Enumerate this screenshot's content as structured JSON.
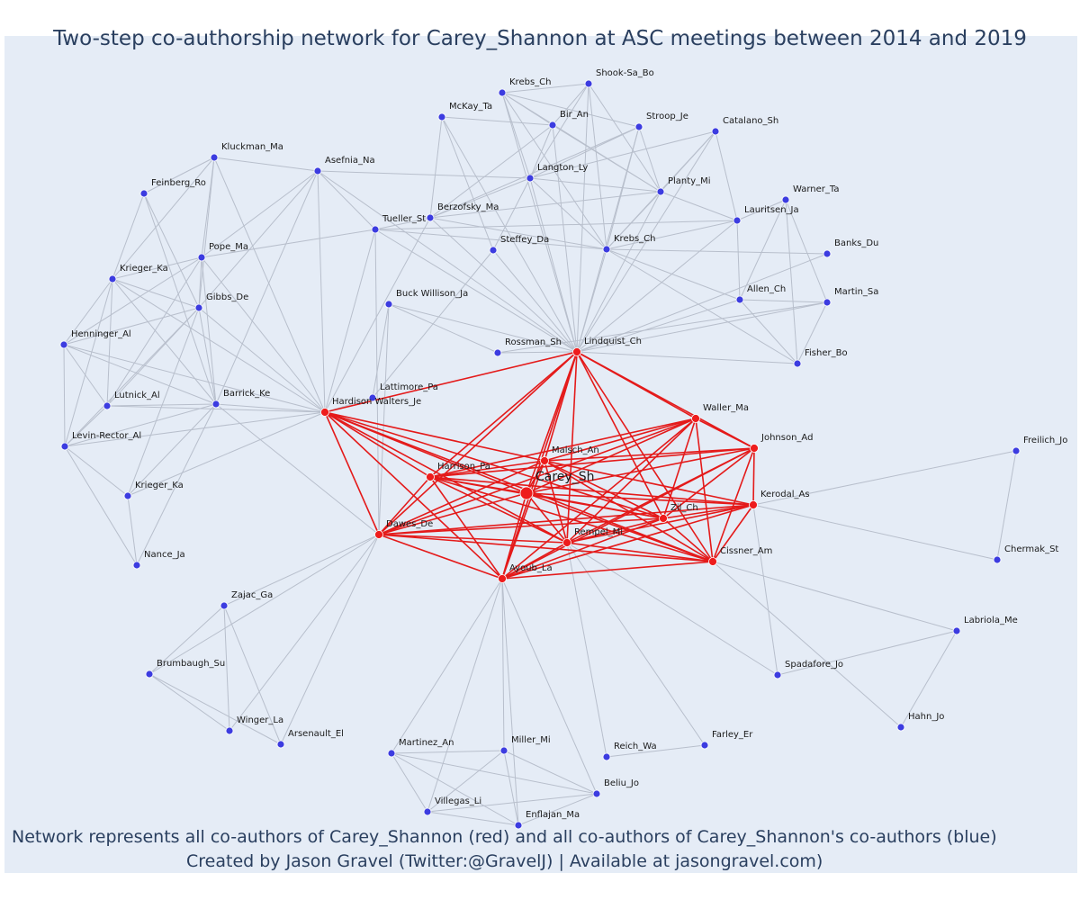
{
  "title": "Two-step co-authorship network for Carey_Shannon at ASC meetings between 2014 and 2019",
  "footnote": {
    "line1": "Network represents all co-authors of Carey_Shannon (red) and all co-authors of Carey_Shannon's co-authors (blue)",
    "line2": "Created by Jason Gravel (Twitter:@GravelJ) | Available at jasongravel.com)"
  },
  "colors": {
    "direct": "#ee1c1c",
    "second": "#3c3ce0",
    "edge_direct": "#e41a1a",
    "edge_second": "#b8bfcc",
    "background": "#e5ecf6"
  },
  "focal": "Carey_Sh",
  "nodes": [
    {
      "id": "Carey_Sh",
      "group": "focal"
    },
    {
      "id": "Malsch_An",
      "group": "direct"
    },
    {
      "id": "Harrison_Pa",
      "group": "direct"
    },
    {
      "id": "Dawes_De",
      "group": "direct"
    },
    {
      "id": "Rempel_Mi",
      "group": "direct"
    },
    {
      "id": "Ayoub_La",
      "group": "direct"
    },
    {
      "id": "Zil_Ch",
      "group": "direct"
    },
    {
      "id": "Cissner_Am",
      "group": "direct"
    },
    {
      "id": "Kerodal_As",
      "group": "direct"
    },
    {
      "id": "Johnson_Ad",
      "group": "direct"
    },
    {
      "id": "Waller_Ma",
      "group": "direct"
    },
    {
      "id": "Lindquist_Ch",
      "group": "direct"
    },
    {
      "id": "Hardison Walters_Je",
      "group": "direct"
    },
    {
      "id": "Krebs_Ch",
      "group": "second"
    },
    {
      "id": "Shook-Sa_Bo",
      "group": "second"
    },
    {
      "id": "McKay_Ta",
      "group": "second"
    },
    {
      "id": "Bir_An",
      "group": "second"
    },
    {
      "id": "Stroop_Je",
      "group": "second"
    },
    {
      "id": "Catalano_Sh",
      "group": "second"
    },
    {
      "id": "Kluckman_Ma",
      "group": "second"
    },
    {
      "id": "Asefnia_Na",
      "group": "second"
    },
    {
      "id": "Langton_Ly",
      "group": "second"
    },
    {
      "id": "Planty_Mi",
      "group": "second"
    },
    {
      "id": "Warner_Ta",
      "group": "second"
    },
    {
      "id": "Feinberg_Ro",
      "group": "second"
    },
    {
      "id": "Berzofsky_Ma",
      "group": "second"
    },
    {
      "id": "Tueller_St",
      "group": "second"
    },
    {
      "id": "Lauritsen_Ja",
      "group": "second"
    },
    {
      "id": "Krebs_Ch_2",
      "label": "Krebs_Ch",
      "group": "second"
    },
    {
      "id": "Steffey_Da",
      "group": "second"
    },
    {
      "id": "Banks_Du",
      "group": "second"
    },
    {
      "id": "Pope_Ma",
      "group": "second"
    },
    {
      "id": "Krieger_Ka",
      "group": "second"
    },
    {
      "id": "Allen_Ch",
      "group": "second"
    },
    {
      "id": "Martin_Sa",
      "group": "second"
    },
    {
      "id": "Gibbs_De",
      "group": "second"
    },
    {
      "id": "Buck Willison_Ja",
      "group": "second"
    },
    {
      "id": "Henninger_Al",
      "group": "second"
    },
    {
      "id": "Rossman_Sh",
      "group": "second"
    },
    {
      "id": "Fisher_Bo",
      "group": "second"
    },
    {
      "id": "Lattimore_Pa",
      "group": "second"
    },
    {
      "id": "Lutnick_Al",
      "group": "second"
    },
    {
      "id": "Barrick_Ke",
      "group": "second"
    },
    {
      "id": "Levin-Rector_Al",
      "group": "second"
    },
    {
      "id": "Freilich_Jo",
      "group": "second"
    },
    {
      "id": "Krieger_Ka_2",
      "label": "Krieger_Ka",
      "group": "second"
    },
    {
      "id": "Chermak_St",
      "group": "second"
    },
    {
      "id": "Nance_Ja",
      "group": "second"
    },
    {
      "id": "Zajac_Ga",
      "group": "second"
    },
    {
      "id": "Labriola_Me",
      "group": "second"
    },
    {
      "id": "Spadafore_Jo",
      "group": "second"
    },
    {
      "id": "Brumbaugh_Su",
      "group": "second"
    },
    {
      "id": "Hahn_Jo",
      "group": "second"
    },
    {
      "id": "Winger_La",
      "group": "second"
    },
    {
      "id": "Arsenault_El",
      "group": "second"
    },
    {
      "id": "Farley_Er",
      "group": "second"
    },
    {
      "id": "Martinez_An",
      "group": "second"
    },
    {
      "id": "Miller_Mi",
      "group": "second"
    },
    {
      "id": "Reich_Wa",
      "group": "second"
    },
    {
      "id": "Beliu_Jo",
      "group": "second"
    },
    {
      "id": "Villegas_Li",
      "group": "second"
    },
    {
      "id": "Enflajan_Ma",
      "group": "second"
    }
  ],
  "edges_direct": [
    [
      "Carey_Sh",
      "Malsch_An"
    ],
    [
      "Carey_Sh",
      "Harrison_Pa"
    ],
    [
      "Carey_Sh",
      "Dawes_De"
    ],
    [
      "Carey_Sh",
      "Rempel_Mi"
    ],
    [
      "Carey_Sh",
      "Ayoub_La"
    ],
    [
      "Carey_Sh",
      "Zil_Ch"
    ],
    [
      "Carey_Sh",
      "Cissner_Am"
    ],
    [
      "Carey_Sh",
      "Kerodal_As"
    ],
    [
      "Carey_Sh",
      "Johnson_Ad"
    ],
    [
      "Carey_Sh",
      "Waller_Ma"
    ],
    [
      "Carey_Sh",
      "Lindquist_Ch"
    ],
    [
      "Carey_Sh",
      "Hardison Walters_Je"
    ],
    [
      "Lindquist_Ch",
      "Hardison Walters_Je"
    ],
    [
      "Lindquist_Ch",
      "Malsch_An"
    ],
    [
      "Lindquist_Ch",
      "Dawes_De"
    ],
    [
      "Lindquist_Ch",
      "Rempel_Mi"
    ],
    [
      "Lindquist_Ch",
      "Ayoub_La"
    ],
    [
      "Lindquist_Ch",
      "Zil_Ch"
    ],
    [
      "Lindquist_Ch",
      "Cissner_Am"
    ],
    [
      "Lindquist_Ch",
      "Waller_Ma"
    ],
    [
      "Lindquist_Ch",
      "Johnson_Ad"
    ],
    [
      "Lindquist_Ch",
      "Harrison_Pa"
    ],
    [
      "Hardison Walters_Je",
      "Harrison_Pa"
    ],
    [
      "Hardison Walters_Je",
      "Dawes_De"
    ],
    [
      "Hardison Walters_Je",
      "Malsch_An"
    ],
    [
      "Hardison Walters_Je",
      "Rempel_Mi"
    ],
    [
      "Hardison Walters_Je",
      "Ayoub_La"
    ],
    [
      "Hardison Walters_Je",
      "Zil_Ch"
    ],
    [
      "Hardison Walters_Je",
      "Cissner_Am"
    ],
    [
      "Waller_Ma",
      "Malsch_An"
    ],
    [
      "Waller_Ma",
      "Harrison_Pa"
    ],
    [
      "Waller_Ma",
      "Rempel_Mi"
    ],
    [
      "Waller_Ma",
      "Ayoub_La"
    ],
    [
      "Waller_Ma",
      "Zil_Ch"
    ],
    [
      "Waller_Ma",
      "Cissner_Am"
    ],
    [
      "Waller_Ma",
      "Johnson_Ad"
    ],
    [
      "Waller_Ma",
      "Dawes_De"
    ],
    [
      "Johnson_Ad",
      "Malsch_An"
    ],
    [
      "Johnson_Ad",
      "Rempel_Mi"
    ],
    [
      "Johnson_Ad",
      "Zil_Ch"
    ],
    [
      "Johnson_Ad",
      "Cissner_Am"
    ],
    [
      "Johnson_Ad",
      "Ayoub_La"
    ],
    [
      "Johnson_Ad",
      "Harrison_Pa"
    ],
    [
      "Johnson_Ad",
      "Kerodal_As"
    ],
    [
      "Malsch_An",
      "Harrison_Pa"
    ],
    [
      "Malsch_An",
      "Dawes_De"
    ],
    [
      "Malsch_An",
      "Rempel_Mi"
    ],
    [
      "Malsch_An",
      "Ayoub_La"
    ],
    [
      "Malsch_An",
      "Zil_Ch"
    ],
    [
      "Malsch_An",
      "Cissner_Am"
    ],
    [
      "Malsch_An",
      "Kerodal_As"
    ],
    [
      "Harrison_Pa",
      "Dawes_De"
    ],
    [
      "Harrison_Pa",
      "Rempel_Mi"
    ],
    [
      "Harrison_Pa",
      "Ayoub_La"
    ],
    [
      "Harrison_Pa",
      "Zil_Ch"
    ],
    [
      "Harrison_Pa",
      "Cissner_Am"
    ],
    [
      "Harrison_Pa",
      "Kerodal_As"
    ],
    [
      "Dawes_De",
      "Rempel_Mi"
    ],
    [
      "Dawes_De",
      "Ayoub_La"
    ],
    [
      "Dawes_De",
      "Zil_Ch"
    ],
    [
      "Dawes_De",
      "Kerodal_As"
    ],
    [
      "Dawes_De",
      "Cissner_Am"
    ],
    [
      "Rempel_Mi",
      "Ayoub_La"
    ],
    [
      "Rempel_Mi",
      "Zil_Ch"
    ],
    [
      "Rempel_Mi",
      "Cissner_Am"
    ],
    [
      "Rempel_Mi",
      "Kerodal_As"
    ],
    [
      "Ayoub_La",
      "Zil_Ch"
    ],
    [
      "Ayoub_La",
      "Cissner_Am"
    ],
    [
      "Ayoub_La",
      "Kerodal_As"
    ],
    [
      "Zil_Ch",
      "Cissner_Am"
    ],
    [
      "Zil_Ch",
      "Kerodal_As"
    ],
    [
      "Cissner_Am",
      "Kerodal_As"
    ]
  ],
  "edges_second": [
    [
      "Lindquist_Ch",
      "Krebs_Ch"
    ],
    [
      "Lindquist_Ch",
      "Shook-Sa_Bo"
    ],
    [
      "Lindquist_Ch",
      "Bir_An"
    ],
    [
      "Lindquist_Ch",
      "Stroop_Je"
    ],
    [
      "Lindquist_Ch",
      "Catalano_Sh"
    ],
    [
      "Lindquist_Ch",
      "Langton_Ly"
    ],
    [
      "Lindquist_Ch",
      "Planty_Mi"
    ],
    [
      "Lindquist_Ch",
      "McKay_Ta"
    ],
    [
      "Lindquist_Ch",
      "Berzofsky_Ma"
    ],
    [
      "Lindquist_Ch",
      "Tueller_St"
    ],
    [
      "Lindquist_Ch",
      "Lauritsen_Ja"
    ],
    [
      "Lindquist_Ch",
      "Krebs_Ch_2"
    ],
    [
      "Lindquist_Ch",
      "Steffey_Da"
    ],
    [
      "Lindquist_Ch",
      "Banks_Du"
    ],
    [
      "Lindquist_Ch",
      "Allen_Ch"
    ],
    [
      "Lindquist_Ch",
      "Martin_Sa"
    ],
    [
      "Lindquist_Ch",
      "Fisher_Bo"
    ],
    [
      "Lindquist_Ch",
      "Rossman_Sh"
    ],
    [
      "Lindquist_Ch",
      "Asefnia_Na"
    ],
    [
      "Krebs_Ch",
      "Shook-Sa_Bo"
    ],
    [
      "Krebs_Ch",
      "Bir_An"
    ],
    [
      "Krebs_Ch",
      "Stroop_Je"
    ],
    [
      "Krebs_Ch",
      "Langton_Ly"
    ],
    [
      "Krebs_Ch",
      "Planty_Mi"
    ],
    [
      "Krebs_Ch",
      "Krebs_Ch_2"
    ],
    [
      "Shook-Sa_Bo",
      "Bir_An"
    ],
    [
      "Shook-Sa_Bo",
      "Planty_Mi"
    ],
    [
      "Shook-Sa_Bo",
      "Langton_Ly"
    ],
    [
      "Shook-Sa_Bo",
      "Krebs_Ch_2"
    ],
    [
      "McKay_Ta",
      "Bir_An"
    ],
    [
      "McKay_Ta",
      "Berzofsky_Ma"
    ],
    [
      "McKay_Ta",
      "Steffey_Da"
    ],
    [
      "Bir_An",
      "Langton_Ly"
    ],
    [
      "Bir_An",
      "Planty_Mi"
    ],
    [
      "Bir_An",
      "Berzofsky_Ma"
    ],
    [
      "Stroop_Je",
      "Langton_Ly"
    ],
    [
      "Stroop_Je",
      "Planty_Mi"
    ],
    [
      "Stroop_Je",
      "Krebs_Ch_2"
    ],
    [
      "Stroop_Je",
      "Berzofsky_Ma"
    ],
    [
      "Catalano_Sh",
      "Langton_Ly"
    ],
    [
      "Catalano_Sh",
      "Planty_Mi"
    ],
    [
      "Catalano_Sh",
      "Lauritsen_Ja"
    ],
    [
      "Catalano_Sh",
      "Krebs_Ch_2"
    ],
    [
      "Langton_Ly",
      "Planty_Mi"
    ],
    [
      "Langton_Ly",
      "Berzofsky_Ma"
    ],
    [
      "Langton_Ly",
      "Krebs_Ch_2"
    ],
    [
      "Langton_Ly",
      "Asefnia_Na"
    ],
    [
      "Langton_Ly",
      "Steffey_Da"
    ],
    [
      "Planty_Mi",
      "Lauritsen_Ja"
    ],
    [
      "Planty_Mi",
      "Krebs_Ch_2"
    ],
    [
      "Planty_Mi",
      "Berzofsky_Ma"
    ],
    [
      "Lauritsen_Ja",
      "Warner_Ta"
    ],
    [
      "Lauritsen_Ja",
      "Krebs_Ch_2"
    ],
    [
      "Lauritsen_Ja",
      "Allen_Ch"
    ],
    [
      "Lauritsen_Ja",
      "Tueller_St"
    ],
    [
      "Warner_Ta",
      "Allen_Ch"
    ],
    [
      "Warner_Ta",
      "Fisher_Bo"
    ],
    [
      "Warner_Ta",
      "Martin_Sa"
    ],
    [
      "Krebs_Ch_2",
      "Berzofsky_Ma"
    ],
    [
      "Krebs_Ch_2",
      "Banks_Du"
    ],
    [
      "Krebs_Ch_2",
      "Allen_Ch"
    ],
    [
      "Krebs_Ch_2",
      "Fisher_Bo"
    ],
    [
      "Krebs_Ch_2",
      "Tueller_St"
    ],
    [
      "Allen_Ch",
      "Martin_Sa"
    ],
    [
      "Allen_Ch",
      "Fisher_Bo"
    ],
    [
      "Martin_Sa",
      "Fisher_Bo"
    ],
    [
      "Rossman_Sh",
      "Martin_Sa"
    ],
    [
      "Buck Willison_Ja",
      "Rossman_Sh"
    ],
    [
      "Buck Willison_Ja",
      "Lindquist_Ch"
    ],
    [
      "Buck Willison_Ja",
      "Lattimore_Pa"
    ],
    [
      "Buck Willison_Ja",
      "Dawes_De"
    ],
    [
      "Tueller_St",
      "Berzofsky_Ma"
    ],
    [
      "Tueller_St",
      "Asefnia_Na"
    ],
    [
      "Tueller_St",
      "Hardison Walters_Je"
    ],
    [
      "Tueller_St",
      "Dawes_De"
    ],
    [
      "Tueller_St",
      "Pope_Ma"
    ],
    [
      "Berzofsky_Ma",
      "Hardison Walters_Je"
    ],
    [
      "Lattimore_Pa",
      "Hardison Walters_Je"
    ],
    [
      "Lattimore_Pa",
      "Steffey_Da"
    ],
    [
      "Kluckman_Ma",
      "Asefnia_Na"
    ],
    [
      "Kluckman_Ma",
      "Feinberg_Ro"
    ],
    [
      "Kluckman_Ma",
      "Pope_Ma"
    ],
    [
      "Kluckman_Ma",
      "Gibbs_De"
    ],
    [
      "Kluckman_Ma",
      "Krieger_Ka"
    ],
    [
      "Kluckman_Ma",
      "Hardison Walters_Je"
    ],
    [
      "Asefnia_Na",
      "Pope_Ma"
    ],
    [
      "Asefnia_Na",
      "Gibbs_De"
    ],
    [
      "Asefnia_Na",
      "Hardison Walters_Je"
    ],
    [
      "Asefnia_Na",
      "Barrick_Ke"
    ],
    [
      "Feinberg_Ro",
      "Krieger_Ka"
    ],
    [
      "Feinberg_Ro",
      "Gibbs_De"
    ],
    [
      "Feinberg_Ro",
      "Barrick_Ke"
    ],
    [
      "Pope_Ma",
      "Krieger_Ka"
    ],
    [
      "Pope_Ma",
      "Gibbs_De"
    ],
    [
      "Pope_Ma",
      "Barrick_Ke"
    ],
    [
      "Pope_Ma",
      "Lutnick_Al"
    ],
    [
      "Pope_Ma",
      "Hardison Walters_Je"
    ],
    [
      "Pope_Ma",
      "Henninger_Al"
    ],
    [
      "Krieger_Ka",
      "Gibbs_De"
    ],
    [
      "Krieger_Ka",
      "Henninger_Al"
    ],
    [
      "Krieger_Ka",
      "Lutnick_Al"
    ],
    [
      "Krieger_Ka",
      "Barrick_Ke"
    ],
    [
      "Krieger_Ka",
      "Levin-Rector_Al"
    ],
    [
      "Krieger_Ka",
      "Hardison Walters_Je"
    ],
    [
      "Gibbs_De",
      "Barrick_Ke"
    ],
    [
      "Gibbs_De",
      "Hardison Walters_Je"
    ],
    [
      "Gibbs_De",
      "Lutnick_Al"
    ],
    [
      "Gibbs_De",
      "Henninger_Al"
    ],
    [
      "Gibbs_De",
      "Levin-Rector_Al"
    ],
    [
      "Gibbs_De",
      "Krieger_Ka_2"
    ],
    [
      "Henninger_Al",
      "Lutnick_Al"
    ],
    [
      "Henninger_Al",
      "Barrick_Ke"
    ],
    [
      "Henninger_Al",
      "Levin-Rector_Al"
    ],
    [
      "Henninger_Al",
      "Hardison Walters_Je"
    ],
    [
      "Lutnick_Al",
      "Barrick_Ke"
    ],
    [
      "Lutnick_Al",
      "Hardison Walters_Je"
    ],
    [
      "Lutnick_Al",
      "Levin-Rector_Al"
    ],
    [
      "Barrick_Ke",
      "Hardison Walters_Je"
    ],
    [
      "Barrick_Ke",
      "Levin-Rector_Al"
    ],
    [
      "Barrick_Ke",
      "Krieger_Ka_2"
    ],
    [
      "Barrick_Ke",
      "Nance_Ja"
    ],
    [
      "Barrick_Ke",
      "Dawes_De"
    ],
    [
      "Levin-Rector_Al",
      "Hardison Walters_Je"
    ],
    [
      "Levin-Rector_Al",
      "Krieger_Ka_2"
    ],
    [
      "Levin-Rector_Al",
      "Nance_Ja"
    ],
    [
      "Krieger_Ka_2",
      "Nance_Ja"
    ],
    [
      "Krieger_Ka_2",
      "Hardison Walters_Je"
    ],
    [
      "Kerodal_As",
      "Freilich_Jo"
    ],
    [
      "Kerodal_As",
      "Chermak_St"
    ],
    [
      "Freilich_Jo",
      "Chermak_St"
    ],
    [
      "Kerodal_As",
      "Spadafore_Jo"
    ],
    [
      "Cissner_Am",
      "Labriola_Me"
    ],
    [
      "Cissner_Am",
      "Hahn_Jo"
    ],
    [
      "Labriola_Me",
      "Spadafore_Jo"
    ],
    [
      "Labriola_Me",
      "Hahn_Jo"
    ],
    [
      "Rempel_Mi",
      "Spadafore_Jo"
    ],
    [
      "Rempel_Mi",
      "Farley_Er"
    ],
    [
      "Rempel_Mi",
      "Reich_Wa"
    ],
    [
      "Reich_Wa",
      "Farley_Er"
    ],
    [
      "Dawes_De",
      "Zajac_Ga"
    ],
    [
      "Dawes_De",
      "Brumbaugh_Su"
    ],
    [
      "Dawes_De",
      "Arsenault_El"
    ],
    [
      "Dawes_De",
      "Winger_La"
    ],
    [
      "Zajac_Ga",
      "Brumbaugh_Su"
    ],
    [
      "Zajac_Ga",
      "Winger_La"
    ],
    [
      "Zajac_Ga",
      "Arsenault_El"
    ],
    [
      "Brumbaugh_Su",
      "Winger_La"
    ],
    [
      "Brumbaugh_Su",
      "Arsenault_El"
    ],
    [
      "Ayoub_La",
      "Martinez_An"
    ],
    [
      "Ayoub_La",
      "Miller_Mi"
    ],
    [
      "Ayoub_La",
      "Beliu_Jo"
    ],
    [
      "Ayoub_La",
      "Villegas_Li"
    ],
    [
      "Ayoub_La",
      "Enflajan_Ma"
    ],
    [
      "Martinez_An",
      "Miller_Mi"
    ],
    [
      "Martinez_An",
      "Beliu_Jo"
    ],
    [
      "Martinez_An",
      "Villegas_Li"
    ],
    [
      "Martinez_An",
      "Enflajan_Ma"
    ],
    [
      "Miller_Mi",
      "Beliu_Jo"
    ],
    [
      "Miller_Mi",
      "Villegas_Li"
    ],
    [
      "Miller_Mi",
      "Enflajan_Ma"
    ],
    [
      "Beliu_Jo",
      "Villegas_Li"
    ],
    [
      "Beliu_Jo",
      "Enflajan_Ma"
    ],
    [
      "Villegas_Li",
      "Enflajan_Ma"
    ]
  ]
}
